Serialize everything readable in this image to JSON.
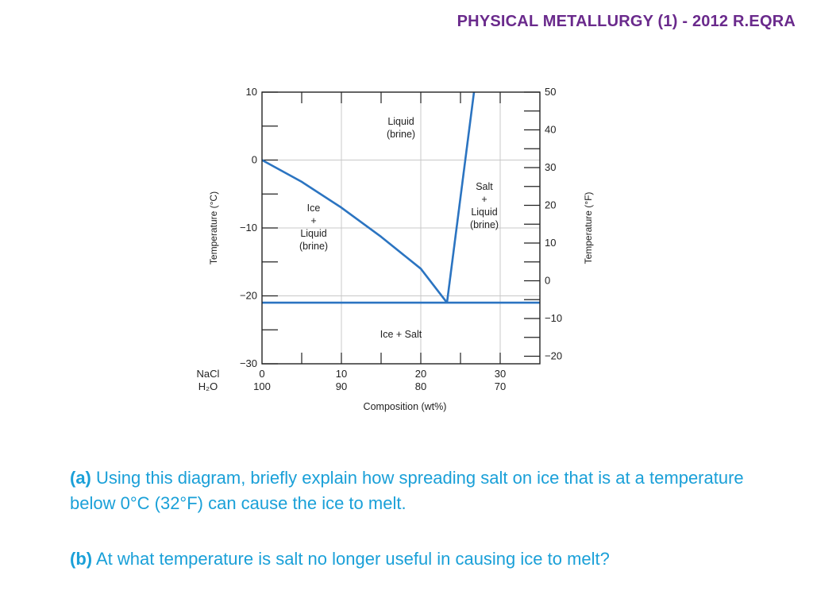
{
  "header": {
    "title": "PHYSICAL METALLURGY (1) - 2012 R.EQRA"
  },
  "colors": {
    "header": "#6a2a8c",
    "curve": "#2b74c1",
    "grid": "#c8c8c8",
    "question": "#1aa0d8"
  },
  "chart_data": {
    "type": "phase-diagram",
    "xlabel": "Composition (wt%)",
    "ylabel_left": "Temperature (°C)",
    "ylabel_right": "Temperature (°F)",
    "component_top": "NaCl",
    "component_bottom": "H₂O",
    "x_ticks_top": [
      "0",
      "10",
      "20",
      "30"
    ],
    "x_ticks_bottom": [
      "100",
      "90",
      "80",
      "70"
    ],
    "xlim": [
      0,
      35
    ],
    "ylim_c": [
      -30,
      10
    ],
    "y_ticks_left": [
      "10",
      "0",
      "−10",
      "−20",
      "−30"
    ],
    "y_ticks_left_values": [
      10,
      0,
      -10,
      -20,
      -30
    ],
    "y_ticks_right": [
      "50",
      "40",
      "30",
      "20",
      "10",
      "0",
      "−10",
      "−20"
    ],
    "y_ticks_right_values_f": [
      50,
      40,
      30,
      20,
      10,
      0,
      -10,
      -20
    ],
    "grid": true,
    "liquidus_ice": [
      [
        0,
        0
      ],
      [
        5,
        -3.2
      ],
      [
        10,
        -7
      ],
      [
        15,
        -11.3
      ],
      [
        20,
        -16
      ],
      [
        23.3,
        -21
      ]
    ],
    "liquidus_salt": [
      [
        23.3,
        -21
      ],
      [
        26.7,
        10
      ]
    ],
    "eutectic": {
      "composition": 23.3,
      "temperature": -21
    },
    "regions": {
      "liquid": [
        "Liquid",
        "(brine)"
      ],
      "ice_liquid": [
        "Ice",
        "+",
        "Liquid",
        "(brine)"
      ],
      "salt_liquid": [
        "Salt",
        "+",
        "Liquid",
        "(brine)"
      ],
      "ice_salt": [
        "Ice + Salt"
      ]
    }
  },
  "questions": {
    "a_label": "(a)",
    "a_text": " Using this diagram, briefly explain how spreading salt on ice that is at a temperature below 0°C (32°F) can cause the ice to melt.",
    "b_label": "(b)",
    "b_text": " At what temperature is salt no longer useful in causing ice to melt?"
  }
}
